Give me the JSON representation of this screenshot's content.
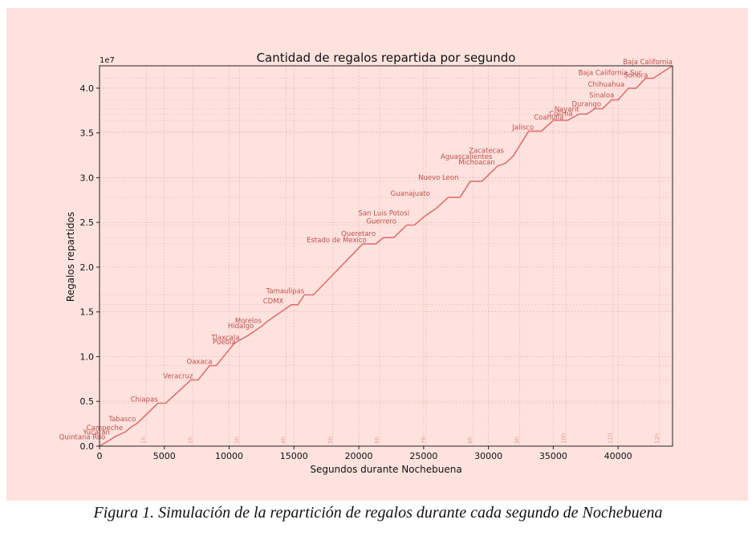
{
  "caption": "Figura 1. Simulación de la repartición de regalos durante cada segundo de Nochebuena",
  "chart_data": {
    "type": "line",
    "title": "Cantidad de regalos repartida por segundo",
    "xlabel": "Segundos durante Nochebuena",
    "ylabel": "Regalos repartidos",
    "y_offset_label": "1e7",
    "xlim": [
      0,
      44200
    ],
    "ylim": [
      0,
      42500000
    ],
    "x_ticks": [
      0,
      5000,
      10000,
      15000,
      20000,
      25000,
      30000,
      35000,
      40000
    ],
    "x_tick_labels": [
      "0",
      "5000",
      "10000",
      "15000",
      "20000",
      "25000",
      "30000",
      "35000",
      "40000"
    ],
    "y_ticks": [
      0,
      5000000,
      10000000,
      15000000,
      20000000,
      25000000,
      30000000,
      35000000,
      40000000
    ],
    "y_tick_labels": [
      "0.0",
      "0.5",
      "1.0",
      "1.5",
      "2.0",
      "2.5",
      "3.0",
      "3.5",
      "4.0"
    ],
    "grid": true,
    "line_color": "#e07070",
    "label_color": "#c0504d",
    "hour_marks": [
      {
        "x": 3600,
        "label": "1h"
      },
      {
        "x": 7200,
        "label": "2h"
      },
      {
        "x": 10800,
        "label": "3h"
      },
      {
        "x": 14400,
        "label": "4h"
      },
      {
        "x": 18000,
        "label": "5h"
      },
      {
        "x": 21600,
        "label": "6h"
      },
      {
        "x": 25200,
        "label": "7h"
      },
      {
        "x": 28800,
        "label": "8h"
      },
      {
        "x": 32400,
        "label": "9h"
      },
      {
        "x": 36000,
        "label": "10h"
      },
      {
        "x": 39600,
        "label": "11h"
      },
      {
        "x": 43200,
        "label": "12h"
      }
    ],
    "series": [
      {
        "x": [
          0,
          700,
          1250,
          2000,
          2400,
          2950,
          4500,
          5100,
          7050,
          7600,
          8500,
          9000,
          10400,
          11500,
          12500,
          13000,
          14800,
          15300,
          15800,
          16500,
          20300,
          21300,
          21900,
          22700,
          23700,
          24300,
          25000,
          26000,
          26900,
          27800,
          28600,
          29500,
          30000,
          30700,
          31300,
          31900,
          33100,
          34100,
          35000,
          36100,
          37000,
          37600,
          38200,
          38800,
          39500,
          40000,
          40800,
          41400,
          42100,
          42700,
          44200
        ],
        "y": [
          0,
          600000,
          1100000,
          1600000,
          2100000,
          2600000,
          4800000,
          4800000,
          7400000,
          7400000,
          9000000,
          9000000,
          11500000,
          12400000,
          13400000,
          14000000,
          15800000,
          15800000,
          16900000,
          16900000,
          22600000,
          22600000,
          23300000,
          23300000,
          24700000,
          24700000,
          25600000,
          26600000,
          27800000,
          27800000,
          29600000,
          29600000,
          30300000,
          31300000,
          31600000,
          32400000,
          35200000,
          35200000,
          36400000,
          36400000,
          37100000,
          37100000,
          37700000,
          37700000,
          38700000,
          38700000,
          40000000,
          40000000,
          41100000,
          41100000,
          42500000
        ]
      }
    ],
    "annotations": [
      {
        "text": "Quintana Roo",
        "x": 450,
        "y": 600000
      },
      {
        "text": "Yucatan",
        "x": 800,
        "y": 1100000
      },
      {
        "text": "Campeche",
        "x": 1800,
        "y": 1600000
      },
      {
        "text": "Tabasco",
        "x": 2800,
        "y": 2600000
      },
      {
        "text": "Chiapas",
        "x": 4500,
        "y": 4800000
      },
      {
        "text": "Veracruz",
        "x": 7200,
        "y": 7400000
      },
      {
        "text": "Oaxaca",
        "x": 8700,
        "y": 9000000
      },
      {
        "text": "Puebla",
        "x": 10500,
        "y": 11200000
      },
      {
        "text": "Tlaxcala",
        "x": 10800,
        "y": 11700000
      },
      {
        "text": "Hidalgo",
        "x": 11900,
        "y": 13000000
      },
      {
        "text": "Morelos",
        "x": 12500,
        "y": 13600000
      },
      {
        "text": "CDMX",
        "x": 14200,
        "y": 15800000
      },
      {
        "text": "Tamaulipas",
        "x": 15800,
        "y": 16900000
      },
      {
        "text": "Estado de Mexico",
        "x": 20600,
        "y": 22600000
      },
      {
        "text": "Queretaro",
        "x": 21300,
        "y": 23300000
      },
      {
        "text": "Guerrero",
        "x": 22900,
        "y": 24700000
      },
      {
        "text": "San Luis Potosi",
        "x": 23900,
        "y": 25600000
      },
      {
        "text": "Guanajuato",
        "x": 25500,
        "y": 27800000
      },
      {
        "text": "Nuevo Leon",
        "x": 27700,
        "y": 29600000
      },
      {
        "text": "Michoacan",
        "x": 30500,
        "y": 31300000
      },
      {
        "text": "Aguascalientes",
        "x": 30300,
        "y": 31900000
      },
      {
        "text": "Zacatecas",
        "x": 31200,
        "y": 32600000
      },
      {
        "text": "Jalisco",
        "x": 33500,
        "y": 35200000
      },
      {
        "text": "Coahuila",
        "x": 35800,
        "y": 36300000
      },
      {
        "text": "Colima",
        "x": 36500,
        "y": 36700000
      },
      {
        "text": "Nayarit",
        "x": 37000,
        "y": 37200000
      },
      {
        "text": "Durango",
        "x": 38700,
        "y": 37800000
      },
      {
        "text": "Sinaloa",
        "x": 39700,
        "y": 38800000
      },
      {
        "text": "Chihuahua",
        "x": 40500,
        "y": 40000000
      },
      {
        "text": "Sonora",
        "x": 42300,
        "y": 41000000
      },
      {
        "text": "Baja California Sur",
        "x": 41800,
        "y": 41300000
      },
      {
        "text": "Baja California",
        "x": 44200,
        "y": 42500000
      }
    ]
  }
}
